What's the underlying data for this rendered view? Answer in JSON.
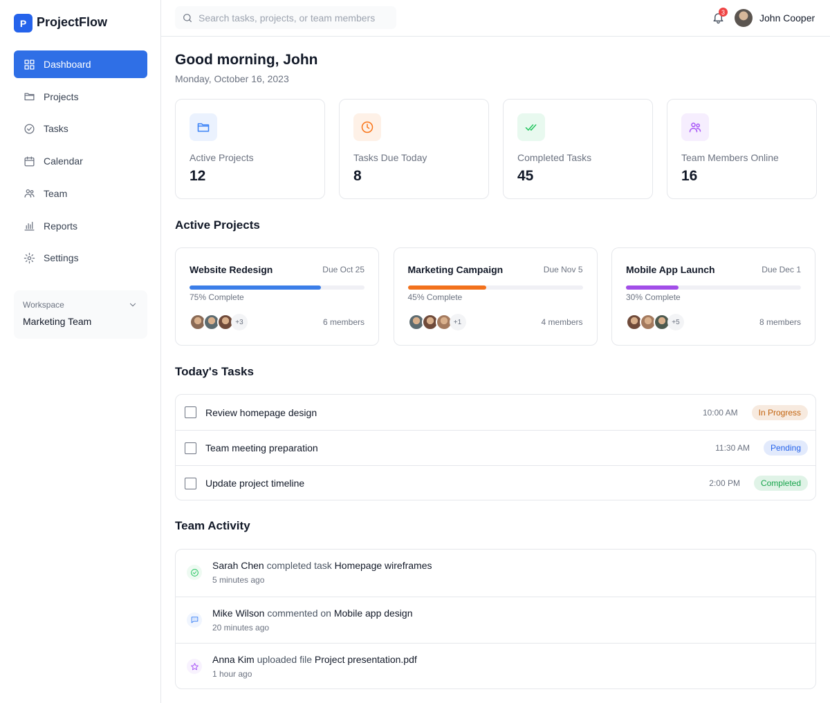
{
  "sidebar": {
    "brand_icon": "P",
    "brand": "ProjectFlow",
    "nav": [
      {
        "label": "Dashboard",
        "active": true
      },
      {
        "label": "Projects",
        "active": false
      },
      {
        "label": "Tasks",
        "active": false
      },
      {
        "label": "Calendar",
        "active": false
      },
      {
        "label": "Team",
        "active": false
      },
      {
        "label": "Reports",
        "active": false
      },
      {
        "label": "Settings",
        "active": false
      }
    ],
    "workspace": {
      "label": "Workspace",
      "name": "Marketing Team"
    }
  },
  "header": {
    "search_placeholder": "Search tasks, projects, or team members",
    "notifications": 3,
    "user": "John Cooper"
  },
  "greeting": {
    "title": "Good morning, John",
    "date": "Monday, October 16, 2023"
  },
  "stats": [
    {
      "label": "Active Projects",
      "value": 12,
      "color": "#3b82f6"
    },
    {
      "label": "Tasks Due Today",
      "value": 8,
      "color": "#f97316"
    },
    {
      "label": "Completed Tasks",
      "value": 45,
      "color": "#22c55e"
    },
    {
      "label": "Team Members Online",
      "value": 16,
      "color": "#a855f7"
    }
  ],
  "active_projects": {
    "title": "Active Projects",
    "items": [
      {
        "name": "Website Redesign",
        "due": "Due Oct 25",
        "progress": 75,
        "progress_label": "75% Complete",
        "color": "#3b7ee8",
        "extra": "+3",
        "members": "6 members"
      },
      {
        "name": "Marketing Campaign",
        "due": "Due Nov 5",
        "progress": 45,
        "progress_label": "45% Complete",
        "color": "#f2711c",
        "extra": "+1",
        "members": "4 members"
      },
      {
        "name": "Mobile App Launch",
        "due": "Due Dec 1",
        "progress": 30,
        "progress_label": "30% Complete",
        "color": "#a24ee8",
        "extra": "+5",
        "members": "8 members"
      }
    ]
  },
  "tasks": {
    "title": "Today's Tasks",
    "items": [
      {
        "name": "Review homepage design",
        "time": "10:00 AM",
        "status": "In Progress",
        "status_color": "#c2620c"
      },
      {
        "name": "Team meeting preparation",
        "time": "11:30 AM",
        "status": "Pending",
        "status_color": "#2563eb"
      },
      {
        "name": "Update project timeline",
        "time": "2:00 PM",
        "status": "Completed",
        "status_color": "#16a34a"
      }
    ]
  },
  "activity": {
    "title": "Team Activity",
    "items": [
      {
        "user": "Sarah Chen",
        "action": "completed task",
        "object": "Homepage wireframes",
        "time": "5 minutes ago",
        "color": "#22c55e"
      },
      {
        "user": "Mike Wilson",
        "action": "commented on",
        "object": "Mobile app design",
        "time": "20 minutes ago",
        "color": "#3b82f6"
      },
      {
        "user": "Anna Kim",
        "action": "uploaded file",
        "object": "Project presentation.pdf",
        "time": "1 hour ago",
        "color": "#a855f7"
      }
    ]
  }
}
